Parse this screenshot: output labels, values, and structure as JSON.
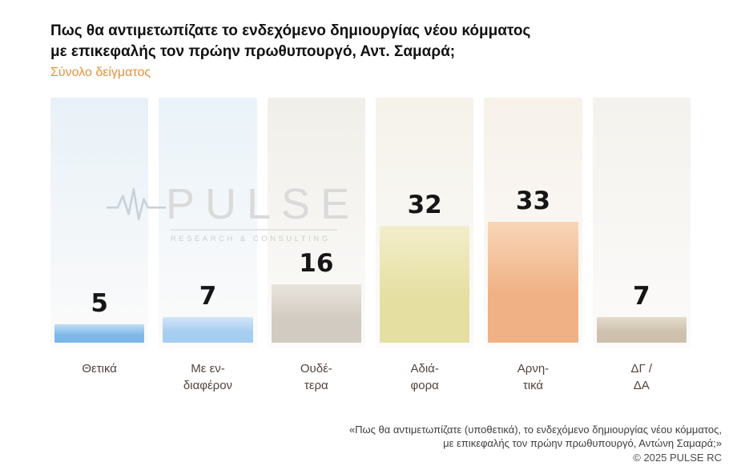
{
  "header": {
    "title_line1": "Πως θα αντιμετωπίζατε το ενδεχόμενο δημιουργίας νέου κόμματος",
    "title_line2": "με επικεφαλής τον πρώην πρωθυπουργό, Αντ. Σαμαρά;",
    "subtitle": "Σύνολο δείγματος"
  },
  "watermark": {
    "brand": "PULSE",
    "tagline": "RESEARCH & CONSULTING"
  },
  "chart_data": {
    "type": "bar",
    "title": "Πως θα αντιμετωπίζατε το ενδεχόμενο δημιουργίας νέου κόμματος με επικεφαλής τον πρώην πρωθυπουργό, Αντ. Σαμαρά;",
    "subtitle": "Σύνολο δείγματος",
    "categories": [
      "Θετικά",
      "Με εν-\nδιαφέρον",
      "Ουδέ-\nτερα",
      "Αδιά-\nφορα",
      "Αρνη-\nτικά",
      "ΔΓ /\nΔΑ"
    ],
    "values": [
      5,
      7,
      16,
      32,
      33,
      7
    ],
    "unit": "percent",
    "xlabel": "",
    "ylabel": "",
    "ylim": [
      0,
      35
    ],
    "grid": false,
    "legend": "none",
    "bar_colors": [
      "#7db7e8",
      "#a5cdf0",
      "#d2cbc1",
      "#e6dfa2",
      "#f0b184",
      "#cdc1ad"
    ],
    "bar_colors_light": [
      "#c2ddf5",
      "#d3e6f8",
      "#e9e4dd",
      "#f2eecb",
      "#f8d5b7",
      "#e4dccd"
    ],
    "column_bg_colors": [
      "#e8f1f8",
      "#eaf3f9",
      "#f0efe9",
      "#f5f2ea",
      "#f7f1ea",
      "#f4f2ed"
    ]
  },
  "colors": {
    "subtitle_orange": "#e8913a",
    "title_black": "#121212",
    "category_text": "#52443c",
    "footer_text": "#3d3d3d",
    "watermark_gray": "#dadada"
  },
  "footer": {
    "line1": "«Πως θα αντιμετωπίζατε (υποθετικά), το ενδεχόμενο δημιουργίας νέου κόμματος,",
    "line2": "με επικεφαλής τον πρώην πρωθυπουργό, Αντώνη Σαμαρά;»",
    "copyright": "© 2025  PULSE RC"
  }
}
